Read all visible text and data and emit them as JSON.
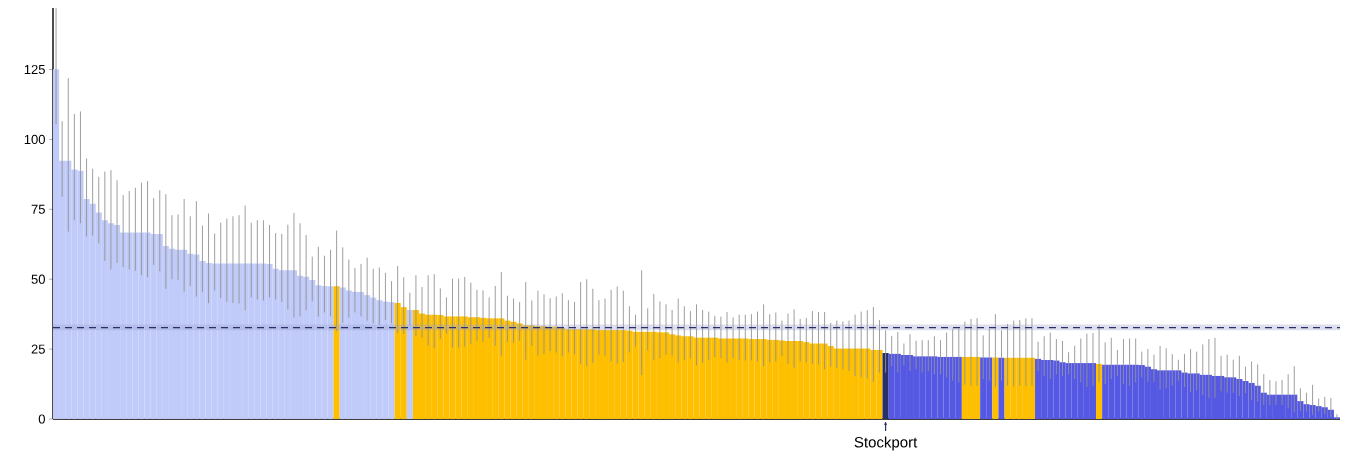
{
  "chart_data": {
    "type": "bar",
    "categories": [
      null,
      null,
      null,
      null,
      null,
      null,
      null,
      null,
      null,
      null,
      null,
      null,
      null,
      null,
      null,
      null,
      null,
      null,
      null,
      null,
      null,
      null,
      null,
      null,
      null,
      null,
      null,
      null,
      null,
      null,
      null,
      null,
      null,
      null,
      null,
      null,
      null,
      null,
      null,
      null,
      null,
      null,
      null,
      null,
      null,
      null,
      null,
      null,
      null,
      null,
      null,
      null,
      null,
      null,
      null,
      null,
      null,
      null,
      null,
      null,
      null,
      null,
      null,
      null,
      null,
      null,
      null,
      null,
      null,
      null,
      null,
      null,
      null,
      null,
      null,
      null,
      null,
      null,
      null,
      null,
      null,
      null,
      null,
      null,
      null,
      null,
      null,
      null,
      null,
      null,
      null,
      null,
      null,
      null,
      null,
      null,
      null,
      null,
      null,
      null,
      null,
      null,
      null,
      null,
      null,
      null,
      null,
      null,
      null,
      null,
      null,
      null,
      null,
      null,
      null,
      null,
      null,
      null,
      null,
      null,
      null,
      null,
      null,
      null,
      null,
      null,
      null,
      null,
      null,
      null,
      null,
      null,
      null,
      null,
      null,
      null,
      "Stockport",
      null,
      null,
      null,
      null,
      null,
      null,
      null,
      null,
      null,
      null,
      null,
      null,
      null,
      null,
      null,
      null,
      null,
      null,
      null,
      null,
      null,
      null,
      null,
      null,
      null,
      null,
      null,
      null,
      null,
      null,
      null,
      null,
      null,
      null,
      null,
      null,
      null,
      null,
      null,
      null,
      null,
      null,
      null,
      null,
      null,
      null,
      null,
      null,
      null,
      null,
      null,
      null,
      null,
      null,
      null,
      null,
      null,
      null,
      null,
      null,
      null,
      null,
      null,
      null,
      null,
      null,
      null,
      null,
      null,
      null,
      null,
      null,
      null,
      null
    ],
    "values": [
      125.1,
      92.4,
      92.4,
      89.2,
      88.8,
      78.7,
      77.0,
      73.9,
      71.1,
      70.0,
      69.4,
      66.7,
      66.7,
      66.7,
      66.7,
      66.7,
      66.2,
      66.2,
      61.9,
      60.9,
      60.5,
      60.5,
      59.1,
      58.8,
      56.5,
      55.8,
      55.6,
      55.6,
      55.6,
      55.6,
      55.6,
      55.6,
      55.6,
      55.6,
      55.6,
      55.4,
      53.7,
      53.2,
      53.2,
      53.2,
      51.2,
      50.9,
      49.7,
      47.8,
      47.6,
      47.5,
      47.5,
      47.0,
      46.0,
      45.5,
      45.4,
      44.3,
      43.4,
      42.5,
      42.0,
      41.8,
      41.5,
      40.0,
      39.0,
      39.0,
      37.7,
      37.3,
      37.3,
      37.2,
      36.7,
      36.7,
      36.7,
      36.7,
      36.4,
      36.4,
      36.2,
      36.0,
      36.0,
      36.0,
      35.2,
      34.8,
      34.2,
      33.5,
      33.5,
      33.2,
      33.2,
      33.0,
      33.0,
      32.5,
      32.1,
      32.1,
      32.1,
      32.1,
      32.1,
      31.8,
      31.8,
      31.8,
      31.8,
      31.8,
      31.6,
      31.2,
      31.2,
      31.2,
      31.2,
      31.0,
      31.0,
      30.3,
      29.9,
      29.6,
      29.6,
      29.1,
      29.1,
      29.1,
      29.1,
      28.8,
      28.8,
      28.8,
      28.8,
      28.8,
      28.6,
      28.6,
      28.6,
      28.3,
      28.3,
      28.1,
      27.9,
      27.9,
      27.9,
      27.5,
      27.0,
      27.0,
      27.0,
      26.1,
      25.2,
      25.2,
      25.2,
      25.2,
      25.2,
      25.2,
      24.7,
      24.7,
      23.6,
      23.3,
      23.3,
      22.9,
      22.9,
      22.4,
      22.4,
      22.4,
      22.4,
      22.2,
      22.2,
      22.2,
      22.2,
      22.2,
      22.2,
      22.2,
      22.0,
      22.0,
      22.0,
      21.9,
      21.9,
      21.9,
      21.9,
      21.9,
      21.9,
      21.5,
      21.1,
      21.1,
      20.9,
      20.3,
      20.0,
      20.0,
      20.0,
      20.0,
      20.0,
      19.7,
      19.4,
      19.4,
      19.4,
      19.4,
      19.4,
      19.4,
      19.3,
      18.7,
      17.8,
      17.4,
      17.4,
      17.4,
      17.4,
      16.6,
      16.3,
      16.3,
      15.8,
      15.8,
      15.4,
      15.4,
      14.9,
      14.9,
      14.3,
      13.6,
      12.9,
      11.9,
      9.4,
      8.7,
      8.7,
      8.7,
      8.7,
      8.7,
      6.4,
      5.3,
      5.0,
      4.6,
      4.2,
      3.3,
      0.6
    ],
    "errors": [
      [
        105.4,
        147
      ],
      [
        79.5,
        106.5
      ],
      [
        67.0,
        121.9
      ],
      [
        71.1,
        109.1
      ],
      [
        70.0,
        110.0
      ],
      [
        65.3,
        93.2
      ],
      [
        65.6,
        89.5
      ],
      [
        62.8,
        86.6
      ],
      [
        56.5,
        88.5
      ],
      [
        53.5,
        89.0
      ],
      [
        55.8,
        85.4
      ],
      [
        54.3,
        80.1
      ],
      [
        53.5,
        81.6
      ],
      [
        53.0,
        82.7
      ],
      [
        51.4,
        84.5
      ],
      [
        50.7,
        85.1
      ],
      [
        55.1,
        79.0
      ],
      [
        52.8,
        81.8
      ],
      [
        46.5,
        80.4
      ],
      [
        50.0,
        72.9
      ],
      [
        49.8,
        73.2
      ],
      [
        45.6,
        78.7
      ],
      [
        47.5,
        72.5
      ],
      [
        43.8,
        77.9
      ],
      [
        45.4,
        69.2
      ],
      [
        41.4,
        73.5
      ],
      [
        46.0,
        66.3
      ],
      [
        43.3,
        70.2
      ],
      [
        41.9,
        71.7
      ],
      [
        41.5,
        72.5
      ],
      [
        41.3,
        72.9
      ],
      [
        38.9,
        76.3
      ],
      [
        43.5,
        70.2
      ],
      [
        42.7,
        71.1
      ],
      [
        42.4,
        71.1
      ],
      [
        43.5,
        69.4
      ],
      [
        42.7,
        66.5
      ],
      [
        41.9,
        66.2
      ],
      [
        39.2,
        69.5
      ],
      [
        36.3,
        73.7
      ],
      [
        36.7,
        70.0
      ],
      [
        38.9,
        65.8
      ],
      [
        42.1,
        58.1
      ],
      [
        36.6,
        61.6
      ],
      [
        38.1,
        58.4
      ],
      [
        36.7,
        60.5
      ],
      [
        31.4,
        67.4
      ],
      [
        34.4,
        61.4
      ],
      [
        36.3,
        57.0
      ],
      [
        38.1,
        54.0
      ],
      [
        36.7,
        55.5
      ],
      [
        35.2,
        57.7
      ],
      [
        34.2,
        53.7
      ],
      [
        33.8,
        54.2
      ],
      [
        35.4,
        52.3
      ],
      [
        34.2,
        49.3
      ],
      [
        30.7,
        54.7
      ],
      [
        30.5,
        50.7
      ],
      [
        33.5,
        45.2
      ],
      [
        29.7,
        51.4
      ],
      [
        29.1,
        47.2
      ],
      [
        26.2,
        51.4
      ],
      [
        25.3,
        51.8
      ],
      [
        28.7,
        46.7
      ],
      [
        30.5,
        43.5
      ],
      [
        25.6,
        50.2
      ],
      [
        25.6,
        50.2
      ],
      [
        25.9,
        50.8
      ],
      [
        26.8,
        48.8
      ],
      [
        28.0,
        46.2
      ],
      [
        27.6,
        46.0
      ],
      [
        29.0,
        43.5
      ],
      [
        26.2,
        47.6
      ],
      [
        22.7,
        52.6
      ],
      [
        27.6,
        44.1
      ],
      [
        27.3,
        43.1
      ],
      [
        28.0,
        41.8
      ],
      [
        21.2,
        49.0
      ],
      [
        26.1,
        42.4
      ],
      [
        22.7,
        45.9
      ],
      [
        23.3,
        44.6
      ],
      [
        24.3,
        43.2
      ],
      [
        23.8,
        43.8
      ],
      [
        22.4,
        45.0
      ],
      [
        23.8,
        42.5
      ],
      [
        23.1,
        41.9
      ],
      [
        19.8,
        49.0
      ],
      [
        18.9,
        50.0
      ],
      [
        20.1,
        46.6
      ],
      [
        23.0,
        42.5
      ],
      [
        22.6,
        43.1
      ],
      [
        20.6,
        46.2
      ],
      [
        19.8,
        47.4
      ],
      [
        20.4,
        45.9
      ],
      [
        23.8,
        40.3
      ],
      [
        25.9,
        37.3
      ],
      [
        15.7,
        53.2
      ],
      [
        24.5,
        39.6
      ],
      [
        21.0,
        44.7
      ],
      [
        21.8,
        42.0
      ],
      [
        23.0,
        41.0
      ],
      [
        22.7,
        39.0
      ],
      [
        20.3,
        43.1
      ],
      [
        21.2,
        40.3
      ],
      [
        21.7,
        38.6
      ],
      [
        19.2,
        41.0
      ],
      [
        20.1,
        39.0
      ],
      [
        21.0,
        38.4
      ],
      [
        22.2,
        36.9
      ],
      [
        21.8,
        36.6
      ],
      [
        20.3,
        38.3
      ],
      [
        21.8,
        36.3
      ],
      [
        21.2,
        37.3
      ],
      [
        21.0,
        37.3
      ],
      [
        21.0,
        37.5
      ],
      [
        20.6,
        38.4
      ],
      [
        18.9,
        41.0
      ],
      [
        20.3,
        37.5
      ],
      [
        20.6,
        38.1
      ],
      [
        22.4,
        35.2
      ],
      [
        19.8,
        37.7
      ],
      [
        18.3,
        39.2
      ],
      [
        20.6,
        35.8
      ],
      [
        20.3,
        36.1
      ],
      [
        19.8,
        38.6
      ],
      [
        19.5,
        38.3
      ],
      [
        17.8,
        38.3
      ],
      [
        18.7,
        34.4
      ],
      [
        18.3,
        35.2
      ],
      [
        17.8,
        34.9
      ],
      [
        17.2,
        35.2
      ],
      [
        15.4,
        37.3
      ],
      [
        14.9,
        38.4
      ],
      [
        14.5,
        38.9
      ],
      [
        13.3,
        40.1
      ],
      [
        16.6,
        35.4
      ],
      [
        16.6,
        31.7
      ],
      [
        18.9,
        29.7
      ],
      [
        16.6,
        31.1
      ],
      [
        19.2,
        27.0
      ],
      [
        17.2,
        30.3
      ],
      [
        17.8,
        28.0
      ],
      [
        16.6,
        28.2
      ],
      [
        17.2,
        28.2
      ],
      [
        16.0,
        29.6
      ],
      [
        16.0,
        28.2
      ],
      [
        14.9,
        30.9
      ],
      [
        13.7,
        32.3
      ],
      [
        13.1,
        32.3
      ],
      [
        12.3,
        34.8
      ],
      [
        11.9,
        35.8
      ],
      [
        11.9,
        36.1
      ],
      [
        14.3,
        29.9
      ],
      [
        13.7,
        32.3
      ],
      [
        11.4,
        37.5
      ],
      [
        13.7,
        31.7
      ],
      [
        11.9,
        34.0
      ],
      [
        11.7,
        35.2
      ],
      [
        11.9,
        35.4
      ],
      [
        11.9,
        36.0
      ],
      [
        11.9,
        36.1
      ],
      [
        17.2,
        27.6
      ],
      [
        15.4,
        29.6
      ],
      [
        14.3,
        30.9
      ],
      [
        16.0,
        28.6
      ],
      [
        15.4,
        27.9
      ],
      [
        16.0,
        23.9
      ],
      [
        14.3,
        26.2
      ],
      [
        13.1,
        28.8
      ],
      [
        11.4,
        30.5
      ],
      [
        11.9,
        30.7
      ],
      [
        13.1,
        33.7
      ],
      [
        12.5,
        27.4
      ],
      [
        14.3,
        29.0
      ],
      [
        15.4,
        24.7
      ],
      [
        12.5,
        28.6
      ],
      [
        11.9,
        28.8
      ],
      [
        13.1,
        28.8
      ],
      [
        14.9,
        24.1
      ],
      [
        13.3,
        25.0
      ],
      [
        13.3,
        23.0
      ],
      [
        10.6,
        26.1
      ],
      [
        11.0,
        25.3
      ],
      [
        11.9,
        23.2
      ],
      [
        13.7,
        21.2
      ],
      [
        11.4,
        23.3
      ],
      [
        9.6,
        25.0
      ],
      [
        10.2,
        24.1
      ],
      [
        8.5,
        26.7
      ],
      [
        7.6,
        28.6
      ],
      [
        7.6,
        29.0
      ],
      [
        9.9,
        22.6
      ],
      [
        9.4,
        23.0
      ],
      [
        9.4,
        21.2
      ],
      [
        8.2,
        22.6
      ],
      [
        9.3,
        18.7
      ],
      [
        6.7,
        20.6
      ],
      [
        6.2,
        19.5
      ],
      [
        5.0,
        16.0
      ],
      [
        5.0,
        13.9
      ],
      [
        5.0,
        13.5
      ],
      [
        5.0,
        14.0
      ],
      [
        3.8,
        16.0
      ],
      [
        2.4,
        18.9
      ],
      [
        2.9,
        11.0
      ],
      [
        2.7,
        9.4
      ],
      [
        1.5,
        12.2
      ],
      [
        2.7,
        7.3
      ],
      [
        1.7,
        7.9
      ],
      [
        0.7,
        7.5
      ],
      [
        0,
        1.7
      ]
    ],
    "colors": [
      "#c0cbfa",
      "#c0cbfa",
      "#c0cbfa",
      "#c0cbfa",
      "#c0cbfa",
      "#c0cbfa",
      "#c0cbfa",
      "#c0cbfa",
      "#c0cbfa",
      "#c0cbfa",
      "#c0cbfa",
      "#c0cbfa",
      "#c0cbfa",
      "#c0cbfa",
      "#c0cbfa",
      "#c0cbfa",
      "#c0cbfa",
      "#c0cbfa",
      "#c0cbfa",
      "#c0cbfa",
      "#c0cbfa",
      "#c0cbfa",
      "#c0cbfa",
      "#c0cbfa",
      "#c0cbfa",
      "#c0cbfa",
      "#c0cbfa",
      "#c0cbfa",
      "#c0cbfa",
      "#c0cbfa",
      "#c0cbfa",
      "#c0cbfa",
      "#c0cbfa",
      "#c0cbfa",
      "#c0cbfa",
      "#c0cbfa",
      "#c0cbfa",
      "#c0cbfa",
      "#c0cbfa",
      "#c0cbfa",
      "#c0cbfa",
      "#c0cbfa",
      "#c0cbfa",
      "#c0cbfa",
      "#c0cbfa",
      "#c0cbfa",
      "#fdbf00",
      "#c0cbfa",
      "#c0cbfa",
      "#c0cbfa",
      "#c0cbfa",
      "#c0cbfa",
      "#c0cbfa",
      "#c0cbfa",
      "#c0cbfa",
      "#c0cbfa",
      "#fdbf00",
      "#fdbf00",
      "#c0cbfa",
      "#fdbf00",
      "#fdbf00",
      "#fdbf00",
      "#fdbf00",
      "#fdbf00",
      "#fdbf00",
      "#fdbf00",
      "#fdbf00",
      "#fdbf00",
      "#fdbf00",
      "#fdbf00",
      "#fdbf00",
      "#fdbf00",
      "#fdbf00",
      "#fdbf00",
      "#fdbf00",
      "#fdbf00",
      "#fdbf00",
      "#fdbf00",
      "#fdbf00",
      "#fdbf00",
      "#fdbf00",
      "#fdbf00",
      "#fdbf00",
      "#fdbf00",
      "#fdbf00",
      "#fdbf00",
      "#fdbf00",
      "#fdbf00",
      "#fdbf00",
      "#fdbf00",
      "#fdbf00",
      "#fdbf00",
      "#fdbf00",
      "#fdbf00",
      "#fdbf00",
      "#fdbf00",
      "#fdbf00",
      "#fdbf00",
      "#fdbf00",
      "#fdbf00",
      "#fdbf00",
      "#fdbf00",
      "#fdbf00",
      "#fdbf00",
      "#fdbf00",
      "#fdbf00",
      "#fdbf00",
      "#fdbf00",
      "#fdbf00",
      "#fdbf00",
      "#fdbf00",
      "#fdbf00",
      "#fdbf00",
      "#fdbf00",
      "#fdbf00",
      "#fdbf00",
      "#fdbf00",
      "#fdbf00",
      "#fdbf00",
      "#fdbf00",
      "#fdbf00",
      "#fdbf00",
      "#fdbf00",
      "#fdbf00",
      "#fdbf00",
      "#fdbf00",
      "#fdbf00",
      "#fdbf00",
      "#fdbf00",
      "#fdbf00",
      "#fdbf00",
      "#fdbf00",
      "#fdbf00",
      "#fdbf00",
      "#fdbf00",
      "#fdbf00",
      "#27306b",
      "#5558e3",
      "#5558e3",
      "#5558e3",
      "#5558e3",
      "#5558e3",
      "#5558e3",
      "#5558e3",
      "#5558e3",
      "#5558e3",
      "#5558e3",
      "#5558e3",
      "#5558e3",
      "#fdbf00",
      "#fdbf00",
      "#fdbf00",
      "#5558e3",
      "#5558e3",
      "#fdbf00",
      "#5558e3",
      "#fdbf00",
      "#fdbf00",
      "#fdbf00",
      "#fdbf00",
      "#fdbf00",
      "#5558e3",
      "#5558e3",
      "#5558e3",
      "#5558e3",
      "#5558e3",
      "#5558e3",
      "#5558e3",
      "#5558e3",
      "#5558e3",
      "#5558e3",
      "#fdbf00",
      "#5558e3",
      "#5558e3",
      "#5558e3",
      "#5558e3",
      "#5558e3",
      "#5558e3",
      "#5558e3",
      "#5558e3",
      "#5558e3",
      "#5558e3",
      "#5558e3",
      "#5558e3",
      "#5558e3",
      "#5558e3",
      "#5558e3",
      "#5558e3",
      "#5558e3",
      "#5558e3",
      "#5558e3",
      "#5558e3",
      "#5558e3",
      "#5558e3",
      "#5558e3",
      "#5558e3",
      "#5558e3",
      "#5558e3",
      "#5558e3",
      "#5558e3",
      "#5558e3",
      "#5558e3",
      "#5558e3",
      "#5558e3",
      "#5558e3",
      "#5558e3",
      "#5558e3",
      "#5558e3",
      "#5558e3",
      "#5558e3",
      "#5558e3"
    ],
    "ylim": [
      0,
      147
    ],
    "yticks": [
      0,
      25,
      50,
      75,
      100,
      125
    ],
    "ref_lines": [
      {
        "axis": "y",
        "value": 32.7,
        "color": "#2a2f6b",
        "line_style": "dashed"
      }
    ],
    "bands": [
      {
        "axis": "y",
        "from": 31.7,
        "to": 33.8,
        "color": "#9ea3c8"
      }
    ]
  }
}
